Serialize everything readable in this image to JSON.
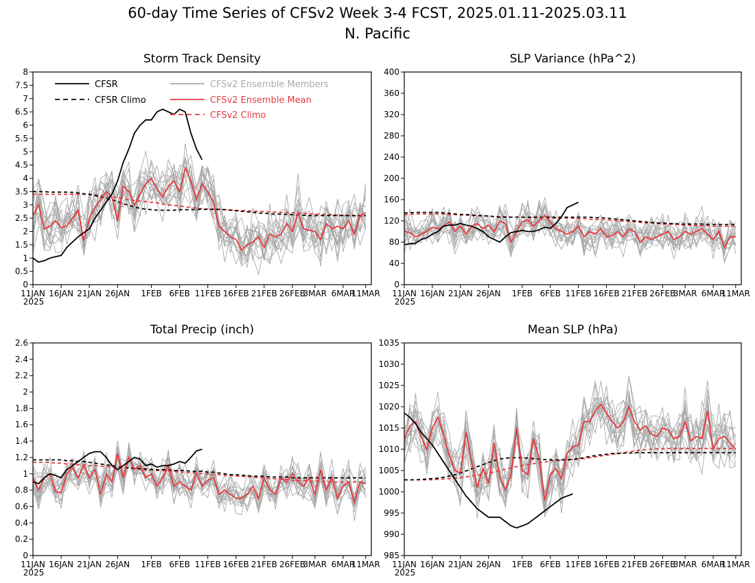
{
  "figure": {
    "title_line1": "60-day Time Series of CFSv2 Week 3-4 FCST, 2025.01.11-2025.03.11",
    "title_line2": "N. Pacific"
  },
  "colors": {
    "observed": "#000000",
    "ensemble_member": "#a9a9a9",
    "ensemble_mean": "#e8383d"
  },
  "legend": [
    {
      "label": "CFSR",
      "color": "#000000",
      "dash": false
    },
    {
      "label": "CFSR Climo",
      "color": "#000000",
      "dash": true
    },
    {
      "label": "CFSv2 Ensemble Members",
      "color": "#a9a9a9",
      "dash": false
    },
    {
      "label": "CFSv2 Ensemble Mean",
      "color": "#e8383d",
      "dash": false
    },
    {
      "label": "CFSv2 Climo",
      "color": "#e8383d",
      "dash": true
    }
  ],
  "chart_data": [
    {
      "type": "line",
      "title": "Storm Track Density",
      "x_days": [
        0,
        60
      ],
      "ylim": [
        0,
        8
      ],
      "yticks": [
        0,
        0.5,
        1,
        1.5,
        2,
        2.5,
        3,
        3.5,
        4,
        4.5,
        5,
        5.5,
        6,
        6.5,
        7,
        7.5,
        8
      ],
      "ytick_labels": [
        "0",
        "0.5",
        "1",
        "1.5",
        "2",
        "2.5",
        "3",
        "3.5",
        "4",
        "4.5",
        "5",
        "5.5",
        "6",
        "6.5",
        "7",
        "7.5",
        "8"
      ],
      "xticks": [
        0,
        5,
        10,
        15,
        21,
        26,
        31,
        36,
        41,
        46,
        50,
        55,
        59
      ],
      "xtick_labels": [
        "11JAN",
        "16JAN",
        "21JAN",
        "26JAN",
        "1FEB",
        "6FEB",
        "11FEB",
        "16FEB",
        "21FEB",
        "26FEB",
        "3MAR",
        "6MAR",
        "11MAR"
      ],
      "xyear_label": "2025",
      "legend_shown": true,
      "cfsr": [
        1.0,
        0.85,
        0.9,
        1.0,
        1.05,
        1.1,
        1.4,
        1.6,
        1.8,
        1.95,
        2.1,
        2.5,
        2.8,
        3.1,
        3.4,
        3.9,
        4.6,
        5.1,
        5.7,
        6.0,
        6.2,
        6.2,
        6.5,
        6.6,
        6.5,
        6.4,
        6.6,
        6.5,
        5.7,
        5.1,
        4.7
      ],
      "cfsr_climo": [
        3.5,
        3.5,
        3.5,
        3.48,
        3.48,
        3.48,
        3.48,
        3.47,
        3.45,
        3.42,
        3.4,
        3.35,
        3.3,
        3.25,
        3.2,
        3.12,
        3.05,
        2.98,
        2.92,
        2.87,
        2.84,
        2.82,
        2.8,
        2.8,
        2.8,
        2.8,
        2.82,
        2.82,
        2.82,
        2.83,
        2.83,
        2.83,
        2.83,
        2.83,
        2.82,
        2.8,
        2.78,
        2.76,
        2.74,
        2.72,
        2.7,
        2.68,
        2.67,
        2.66,
        2.65,
        2.64,
        2.63,
        2.62,
        2.61,
        2.6,
        2.6,
        2.6,
        2.6,
        2.6,
        2.6,
        2.6,
        2.6,
        2.6,
        2.6,
        2.6
      ],
      "ens_mean": [
        2.6,
        3.0,
        2.1,
        2.2,
        2.4,
        2.15,
        2.2,
        2.5,
        2.8,
        1.65,
        2.5,
        2.9,
        3.2,
        3.5,
        3.3,
        2.4,
        3.7,
        3.5,
        3.0,
        3.4,
        3.8,
        4.0,
        3.6,
        3.3,
        3.7,
        3.9,
        3.5,
        4.4,
        3.9,
        3.2,
        3.8,
        3.5,
        3.1,
        2.2,
        2.0,
        1.8,
        1.7,
        1.3,
        1.5,
        1.6,
        1.8,
        1.4,
        1.9,
        1.8,
        1.9,
        2.3,
        2.0,
        2.7,
        2.1,
        2.05,
        2.0,
        1.7,
        2.3,
        2.1,
        2.2,
        2.1,
        2.4,
        1.9,
        2.6,
        2.7
      ],
      "ens_climo": [
        3.4,
        3.4,
        3.4,
        3.4,
        3.4,
        3.4,
        3.4,
        3.4,
        3.4,
        3.4,
        3.4,
        3.38,
        3.35,
        3.32,
        3.3,
        3.27,
        3.24,
        3.2,
        3.17,
        3.14,
        3.12,
        3.1,
        3.07,
        3.04,
        3.0,
        2.98,
        2.96,
        2.93,
        2.9,
        2.88,
        2.86,
        2.85,
        2.84,
        2.83,
        2.82,
        2.81,
        2.8,
        2.79,
        2.78,
        2.77,
        2.76,
        2.75,
        2.74,
        2.73,
        2.72,
        2.71,
        2.7,
        2.69,
        2.68,
        2.67,
        2.66,
        2.65,
        2.64,
        2.63,
        2.62,
        2.61,
        2.6,
        2.59,
        2.58,
        2.57
      ],
      "member_stats": {
        "count": 16,
        "spread": 0.9,
        "seed": 11
      }
    },
    {
      "type": "line",
      "title": "SLP Variance (hPa^2)",
      "x_days": [
        0,
        60
      ],
      "ylim": [
        0,
        400
      ],
      "yticks": [
        0,
        40,
        80,
        120,
        160,
        200,
        240,
        280,
        320,
        360,
        400
      ],
      "ytick_labels": [
        "0",
        "40",
        "80",
        "120",
        "160",
        "200",
        "240",
        "280",
        "320",
        "360",
        "400"
      ],
      "xticks": [
        0,
        5,
        10,
        15,
        21,
        26,
        31,
        36,
        41,
        46,
        50,
        55,
        59
      ],
      "xtick_labels": [
        "11JAN",
        "16JAN",
        "21JAN",
        "26JAN",
        "1FEB",
        "6FEB",
        "11FEB",
        "16FEB",
        "21FEB",
        "26FEB",
        "3MAR",
        "6MAR",
        "11MAR"
      ],
      "xyear_label": "2025",
      "legend_shown": false,
      "cfsr": [
        75,
        77,
        78,
        85,
        88,
        95,
        100,
        110,
        112,
        112,
        115,
        112,
        110,
        105,
        100,
        90,
        85,
        80,
        90,
        98,
        100,
        102,
        100,
        100,
        103,
        108,
        106,
        115,
        128,
        145,
        150,
        155
      ],
      "cfsr_climo": [
        135,
        135,
        136,
        136,
        136,
        136,
        136,
        135,
        134,
        133,
        132,
        132,
        131,
        130,
        130,
        129,
        128,
        127,
        127,
        127,
        127,
        127,
        127,
        127,
        127,
        127,
        127,
        127,
        127,
        127,
        127,
        127,
        127,
        127,
        126,
        126,
        125,
        124,
        123,
        122,
        121,
        120,
        119,
        118,
        117,
        116,
        116,
        115,
        115,
        114,
        114,
        114,
        114,
        114,
        113,
        113,
        113,
        113,
        113,
        113
      ],
      "ens_mean": [
        100,
        98,
        90,
        95,
        100,
        108,
        105,
        110,
        118,
        100,
        110,
        95,
        110,
        115,
        105,
        112,
        100,
        120,
        115,
        80,
        100,
        118,
        122,
        110,
        120,
        130,
        118,
        105,
        100,
        95,
        100,
        110,
        90,
        100,
        95,
        105,
        90,
        92,
        100,
        90,
        105,
        100,
        80,
        90,
        85,
        90,
        95,
        100,
        85,
        90,
        100,
        95,
        100,
        105,
        95,
        85,
        100,
        70,
        90,
        90
      ],
      "ens_climo": [
        132,
        132,
        133,
        133,
        133,
        133,
        133,
        133,
        132,
        132,
        131,
        131,
        130,
        130,
        129,
        129,
        128,
        128,
        128,
        127,
        127,
        127,
        126,
        126,
        126,
        126,
        125,
        125,
        125,
        125,
        125,
        124,
        124,
        123,
        123,
        122,
        122,
        121,
        120,
        120,
        119,
        118,
        117,
        116,
        116,
        115,
        114,
        114,
        113,
        113,
        112,
        112,
        111,
        111,
        111,
        110,
        110,
        110,
        110,
        110
      ],
      "member_stats": {
        "count": 16,
        "spread": 28,
        "seed": 23
      }
    },
    {
      "type": "line",
      "title": "Total Precip (inch)",
      "x_days": [
        0,
        60
      ],
      "ylim": [
        0,
        2.6
      ],
      "yticks": [
        0,
        0.2,
        0.4,
        0.6,
        0.8,
        1.0,
        1.2,
        1.4,
        1.6,
        1.8,
        2.0,
        2.2,
        2.4,
        2.6
      ],
      "ytick_labels": [
        "0",
        "0.2",
        "0.4",
        "0.6",
        "0.8",
        "1",
        "1.2",
        "1.4",
        "1.6",
        "1.8",
        "2",
        "2.2",
        "2.4",
        "2.6"
      ],
      "xticks": [
        0,
        5,
        10,
        15,
        21,
        26,
        31,
        36,
        41,
        46,
        50,
        55,
        59
      ],
      "xtick_labels": [
        "11JAN",
        "16JAN",
        "21JAN",
        "26JAN",
        "1FEB",
        "6FEB",
        "11FEB",
        "16FEB",
        "21FEB",
        "26FEB",
        "3MAR",
        "6MAR",
        "11MAR"
      ],
      "xyear_label": "2025",
      "legend_shown": false,
      "cfsr": [
        0.9,
        0.88,
        0.95,
        1.0,
        0.98,
        0.95,
        1.05,
        1.1,
        1.15,
        1.2,
        1.25,
        1.27,
        1.27,
        1.2,
        1.1,
        1.05,
        1.1,
        1.15,
        1.2,
        1.18,
        1.1,
        1.12,
        1.08,
        1.1,
        1.1,
        1.12,
        1.15,
        1.13,
        1.2,
        1.28,
        1.3
      ],
      "cfsr_climo": [
        1.17,
        1.17,
        1.17,
        1.17,
        1.17,
        1.17,
        1.16,
        1.16,
        1.15,
        1.15,
        1.14,
        1.13,
        1.12,
        1.11,
        1.1,
        1.09,
        1.08,
        1.07,
        1.07,
        1.06,
        1.06,
        1.05,
        1.05,
        1.05,
        1.05,
        1.04,
        1.04,
        1.04,
        1.03,
        1.03,
        1.03,
        1.02,
        1.02,
        1.01,
        1.0,
        0.99,
        0.99,
        0.98,
        0.98,
        0.97,
        0.97,
        0.97,
        0.96,
        0.96,
        0.96,
        0.96,
        0.95,
        0.95,
        0.95,
        0.95,
        0.95,
        0.95,
        0.95,
        0.95,
        0.95,
        0.95,
        0.95,
        0.95,
        0.95,
        0.95
      ],
      "ens_mean": [
        0.95,
        0.8,
        0.95,
        1.0,
        0.78,
        0.77,
        1.0,
        1.08,
        0.95,
        1.1,
        0.95,
        1.05,
        0.75,
        1.0,
        0.9,
        1.25,
        0.95,
        1.2,
        1.05,
        1.1,
        0.95,
        1.0,
        0.85,
        0.95,
        1.1,
        0.85,
        0.9,
        0.85,
        0.8,
        1.0,
        0.85,
        0.92,
        0.95,
        0.75,
        0.8,
        0.75,
        0.7,
        0.7,
        0.75,
        0.85,
        0.7,
        0.95,
        0.8,
        0.75,
        0.95,
        0.9,
        1.0,
        0.9,
        0.85,
        0.95,
        0.75,
        1.05,
        0.8,
        0.95,
        0.7,
        0.85,
        0.9,
        0.65,
        0.9,
        0.88
      ],
      "ens_climo": [
        1.14,
        1.14,
        1.14,
        1.14,
        1.13,
        1.13,
        1.12,
        1.12,
        1.11,
        1.11,
        1.1,
        1.1,
        1.09,
        1.09,
        1.08,
        1.08,
        1.07,
        1.07,
        1.06,
        1.06,
        1.05,
        1.05,
        1.04,
        1.04,
        1.03,
        1.03,
        1.02,
        1.02,
        1.01,
        1.01,
        1.0,
        1.0,
        0.99,
        0.99,
        0.98,
        0.98,
        0.97,
        0.97,
        0.96,
        0.96,
        0.95,
        0.95,
        0.94,
        0.94,
        0.93,
        0.93,
        0.92,
        0.92,
        0.92,
        0.91,
        0.91,
        0.91,
        0.9,
        0.9,
        0.9,
        0.9,
        0.9,
        0.9,
        0.9,
        0.9
      ],
      "member_stats": {
        "count": 16,
        "spread": 0.18,
        "seed": 37
      }
    },
    {
      "type": "line",
      "title": "Mean SLP (hPa)",
      "x_days": [
        0,
        60
      ],
      "ylim": [
        985,
        1035
      ],
      "yticks": [
        985,
        990,
        995,
        1000,
        1005,
        1010,
        1015,
        1020,
        1025,
        1030,
        1035
      ],
      "ytick_labels": [
        "985",
        "990",
        "995",
        "1000",
        "1005",
        "1010",
        "1015",
        "1020",
        "1025",
        "1030",
        "1035"
      ],
      "xticks": [
        0,
        5,
        10,
        15,
        21,
        26,
        31,
        36,
        41,
        46,
        50,
        55,
        59
      ],
      "xtick_labels": [
        "11JAN",
        "16JAN",
        "21JAN",
        "26JAN",
        "1FEB",
        "6FEB",
        "11FEB",
        "16FEB",
        "21FEB",
        "26FEB",
        "3MAR",
        "6MAR",
        "11MAR"
      ],
      "xyear_label": "2025",
      "legend_shown": false,
      "cfsr": [
        1018.5,
        1017.5,
        1016,
        1014,
        1012.5,
        1011,
        1009,
        1007,
        1005,
        1003,
        1001,
        999,
        997.5,
        996,
        995,
        994,
        994,
        994,
        993,
        992,
        991.5,
        992,
        992.5,
        993.5,
        994.5,
        995.5,
        996.5,
        997.5,
        998.5,
        999,
        999.5
      ],
      "cfsr_climo": [
        1002.8,
        1002.8,
        1002.8,
        1002.9,
        1003.0,
        1003.1,
        1003.2,
        1003.4,
        1003.7,
        1004.0,
        1004.4,
        1004.9,
        1005.4,
        1005.9,
        1006.4,
        1006.9,
        1007.3,
        1007.7,
        1007.9,
        1008.0,
        1008.0,
        1008.0,
        1007.9,
        1007.8,
        1007.7,
        1007.6,
        1007.5,
        1007.5,
        1007.5,
        1007.5,
        1007.6,
        1007.8,
        1008.0,
        1008.3,
        1008.5,
        1008.7,
        1008.8,
        1009.0,
        1009.0,
        1009.1,
        1009.1,
        1009.2,
        1009.2,
        1009.2,
        1009.2,
        1009.2,
        1009.2,
        1009.2,
        1009.2,
        1009.2,
        1009.2,
        1009.2,
        1009.2,
        1009.2,
        1009.2,
        1009.2,
        1009.2,
        1009.2,
        1009.2,
        1009.2
      ],
      "ens_mean": [
        1012.5,
        1015.5,
        1016.5,
        1013.0,
        1010.0,
        1015.0,
        1017.5,
        1013.5,
        1008.5,
        1005.0,
        1004.5,
        1014.0,
        1007.0,
        1001.0,
        1005.5,
        1002.0,
        1011.5,
        1003.5,
        1000.5,
        1004.0,
        1015.0,
        1005.0,
        1004.0,
        1012.5,
        1008.0,
        998.0,
        1004.0,
        1005.5,
        1003.0,
        1009.0,
        1010.5,
        1011.0,
        1016.5,
        1016.5,
        1019.0,
        1020.5,
        1018.5,
        1016.5,
        1015.0,
        1016.5,
        1020.0,
        1016.5,
        1014.5,
        1015.5,
        1013.5,
        1013.0,
        1015.0,
        1014.5,
        1012.5,
        1013.0,
        1016.5,
        1012.0,
        1013.0,
        1012.5,
        1019.0,
        1010.0,
        1012.5,
        1013.0,
        1011.5,
        1010.0
      ],
      "ens_climo": [
        1002.8,
        1002.8,
        1002.8,
        1002.8,
        1002.8,
        1002.8,
        1002.9,
        1003.0,
        1003.1,
        1003.2,
        1003.3,
        1003.5,
        1003.7,
        1003.9,
        1004.1,
        1004.4,
        1004.7,
        1005.0,
        1005.3,
        1005.6,
        1005.9,
        1006.2,
        1006.4,
        1006.6,
        1006.8,
        1007.0,
        1007.2,
        1007.3,
        1007.4,
        1007.5,
        1007.6,
        1007.7,
        1007.8,
        1008.0,
        1008.2,
        1008.4,
        1008.6,
        1008.8,
        1009.0,
        1009.2,
        1009.4,
        1009.6,
        1009.8,
        1009.9,
        1010.0,
        1010.1,
        1010.1,
        1010.2,
        1010.2,
        1010.2,
        1010.2,
        1010.2,
        1010.2,
        1010.2,
        1010.2,
        1010.2,
        1010.2,
        1010.2,
        1010.2,
        1010.2
      ],
      "member_stats": {
        "count": 16,
        "spread": 5.5,
        "seed": 59
      }
    }
  ]
}
